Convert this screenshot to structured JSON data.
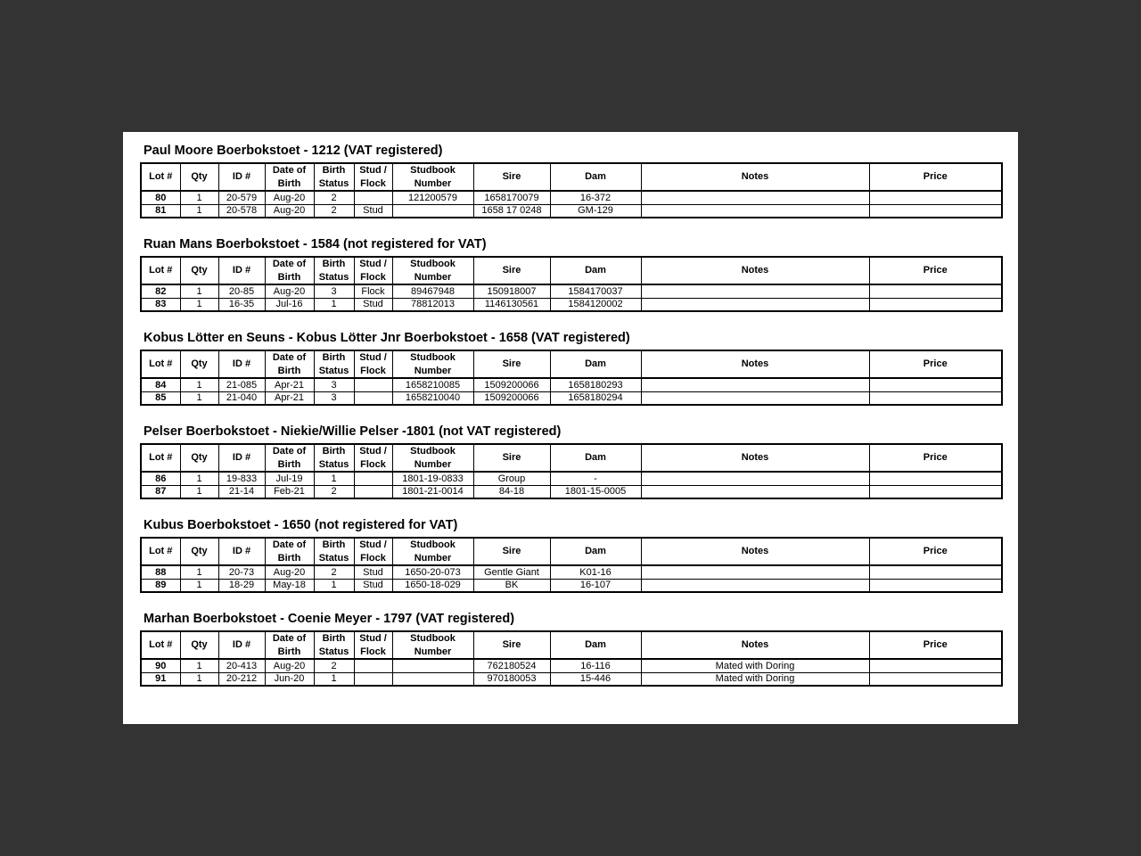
{
  "theme": {
    "canvas_background": "#333333",
    "page_background": "#ffffff",
    "text_color": "#000000",
    "table_border_color": "#000000"
  },
  "columns": [
    {
      "key": "lot",
      "label": "Lot #"
    },
    {
      "key": "qty",
      "label": "Qty"
    },
    {
      "key": "id",
      "label": "ID #"
    },
    {
      "key": "date-of-birth",
      "label": "Date of\nBirth"
    },
    {
      "key": "birth-status",
      "label": "Birth\nStatus"
    },
    {
      "key": "stud-flock",
      "label": "Stud /\nFlock"
    },
    {
      "key": "studbook-number",
      "label": "Studbook\nNumber"
    },
    {
      "key": "sire",
      "label": "Sire"
    },
    {
      "key": "dam",
      "label": "Dam"
    },
    {
      "key": "notes",
      "label": "Notes"
    },
    {
      "key": "price",
      "label": "Price"
    }
  ],
  "sections": [
    {
      "heading": "Paul Moore Boerbokstoet - 1212 (VAT registered)",
      "rows": [
        [
          "80",
          "1",
          "20-579",
          "Aug-20",
          "2",
          "",
          "121200579",
          "1658170079",
          "16-372",
          "",
          ""
        ],
        [
          "81",
          "1",
          "20-578",
          "Aug-20",
          "2",
          "Stud",
          "",
          "1658 17 0248",
          "GM-129",
          "",
          ""
        ]
      ]
    },
    {
      "heading": "Ruan Mans Boerbokstoet - 1584 (not registered for VAT)",
      "rows": [
        [
          "82",
          "1",
          "20-85",
          "Aug-20",
          "3",
          "Flock",
          "89467948",
          "150918007",
          "1584170037",
          "",
          ""
        ],
        [
          "83",
          "1",
          "16-35",
          "Jul-16",
          "1",
          "Stud",
          "78812013",
          "1146130561",
          "1584120002",
          "",
          ""
        ]
      ]
    },
    {
      "heading": "Kobus Lötter en Seuns - Kobus Lötter Jnr Boerbokstoet - 1658 (VAT registered)",
      "rows": [
        [
          "84",
          "1",
          "21-085",
          "Apr-21",
          "3",
          "",
          "1658210085",
          "1509200066",
          "1658180293",
          "",
          ""
        ],
        [
          "85",
          "1",
          "21-040",
          "Apr-21",
          "3",
          "",
          "1658210040",
          "1509200066",
          "1658180294",
          "",
          ""
        ]
      ]
    },
    {
      "heading": "Pelser Boerbokstoet - Niekie/Willie Pelser -1801 (not VAT registered)",
      "rows": [
        [
          "86",
          "1",
          "19-833",
          "Jul-19",
          "1",
          "",
          "1801-19-0833",
          "Group",
          "-",
          "",
          ""
        ],
        [
          "87",
          "1",
          "21-14",
          "Feb-21",
          "2",
          "",
          "1801-21-0014",
          "84-18",
          "1801-15-0005",
          "",
          ""
        ]
      ]
    },
    {
      "heading": "Kubus Boerbokstoet - 1650 (not registered for VAT)",
      "rows": [
        [
          "88",
          "1",
          "20-73",
          "Aug-20",
          "2",
          "Stud",
          "1650-20-073",
          "Gentle Giant",
          "K01-16",
          "",
          ""
        ],
        [
          "89",
          "1",
          "18-29",
          "May-18",
          "1",
          "Stud",
          "1650-18-029",
          "BK",
          "16-107",
          "",
          ""
        ]
      ]
    },
    {
      "heading": "Marhan Boerbokstoet - Coenie Meyer - 1797 (VAT registered)",
      "rows": [
        [
          "90",
          "1",
          "20-413",
          "Aug-20",
          "2",
          "",
          "",
          "762180524",
          "16-116",
          "Mated with Doring",
          ""
        ],
        [
          "91",
          "1",
          "20-212",
          "Jun-20",
          "1",
          "",
          "",
          "970180053",
          "15-446",
          "Mated with Doring",
          ""
        ]
      ]
    }
  ]
}
